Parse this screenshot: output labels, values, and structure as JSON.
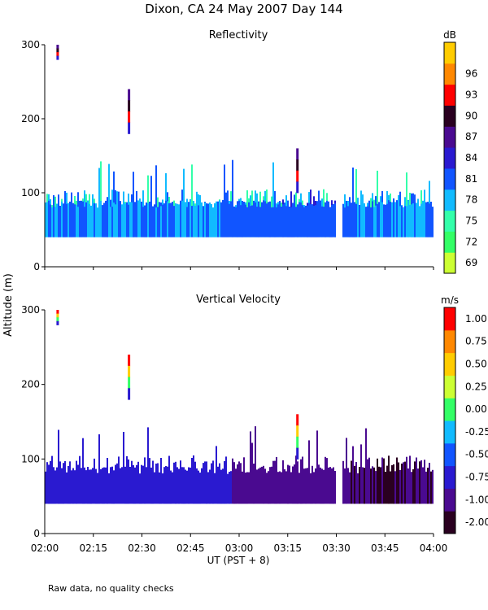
{
  "title": "Dixon, CA 24 May 2007  Day 144",
  "footer_note": "Raw data, no quality checks",
  "chart_data": [
    {
      "type": "heatmap",
      "title": "Reflectivity",
      "ylabel": "Altitude (m)",
      "xlabel": "UT  (PST + 8)",
      "x_range": [
        "02:00",
        "04:00"
      ],
      "xticks": [
        "02:00",
        "02:15",
        "02:30",
        "02:45",
        "03:00",
        "03:15",
        "03:30",
        "03:45",
        "04:00"
      ],
      "ylim": [
        0,
        300
      ],
      "yticks": [
        0,
        100,
        200,
        300
      ],
      "colorbar": {
        "unit": "dB",
        "ticks": [
          "69",
          "72",
          "75",
          "78",
          "81",
          "84",
          "87",
          "90",
          "93",
          "96"
        ],
        "colors": [
          "#ccff33",
          "#33ff66",
          "#33ffaa",
          "#11bbff",
          "#1155ff",
          "#2a1ad0",
          "#4a0a90",
          "#2a0020",
          "#ff0000",
          "#ff8800",
          "#ffcc00"
        ]
      },
      "features": [
        {
          "label": "main echo layer",
          "time_start": "02:00",
          "time_end": "04:00",
          "altitude_bottom_m": 40,
          "altitude_top_m": 100,
          "altitude_max_m": 140
        },
        {
          "label": "isolated echo",
          "time": "02:04",
          "altitude_m": [
            280,
            300
          ]
        },
        {
          "label": "isolated echo",
          "time": "02:26",
          "altitude_m": [
            180,
            240
          ]
        },
        {
          "label": "isolated echo",
          "time": "03:18",
          "altitude_m": [
            100,
            160
          ]
        }
      ]
    },
    {
      "type": "heatmap",
      "title": "Vertical Velocity",
      "ylabel": "Altitude (m)",
      "xlabel": "UT  (PST + 8)",
      "x_range": [
        "02:00",
        "04:00"
      ],
      "xticks": [
        "02:00",
        "02:15",
        "02:30",
        "02:45",
        "03:00",
        "03:15",
        "03:30",
        "03:45",
        "04:00"
      ],
      "ylim": [
        0,
        300
      ],
      "yticks": [
        0,
        100,
        200,
        300
      ],
      "colorbar": {
        "unit": "m/s",
        "ticks": [
          "-2.00",
          "-1.00",
          "-0.75",
          "-0.50",
          "-0.25",
          "0.00",
          "0.25",
          "0.50",
          "0.75",
          "1.00"
        ],
        "colors": [
          "#2a0020",
          "#4a0a90",
          "#2a1ad0",
          "#1155ff",
          "#11bbff",
          "#33ff66",
          "#ccff33",
          "#ffcc00",
          "#ff8800",
          "#ff0000"
        ]
      },
      "features": [
        {
          "label": "main echo layer",
          "time_start": "02:00",
          "time_end": "04:00",
          "altitude_bottom_m": 40,
          "altitude_top_m": 100,
          "altitude_max_m": 140
        },
        {
          "label": "isolated echo",
          "time": "02:04",
          "altitude_m": [
            280,
            300
          ]
        },
        {
          "label": "isolated echo",
          "time": "02:26",
          "altitude_m": [
            180,
            240
          ]
        },
        {
          "label": "isolated echo",
          "time": "03:18",
          "altitude_m": [
            100,
            160
          ]
        }
      ]
    }
  ]
}
